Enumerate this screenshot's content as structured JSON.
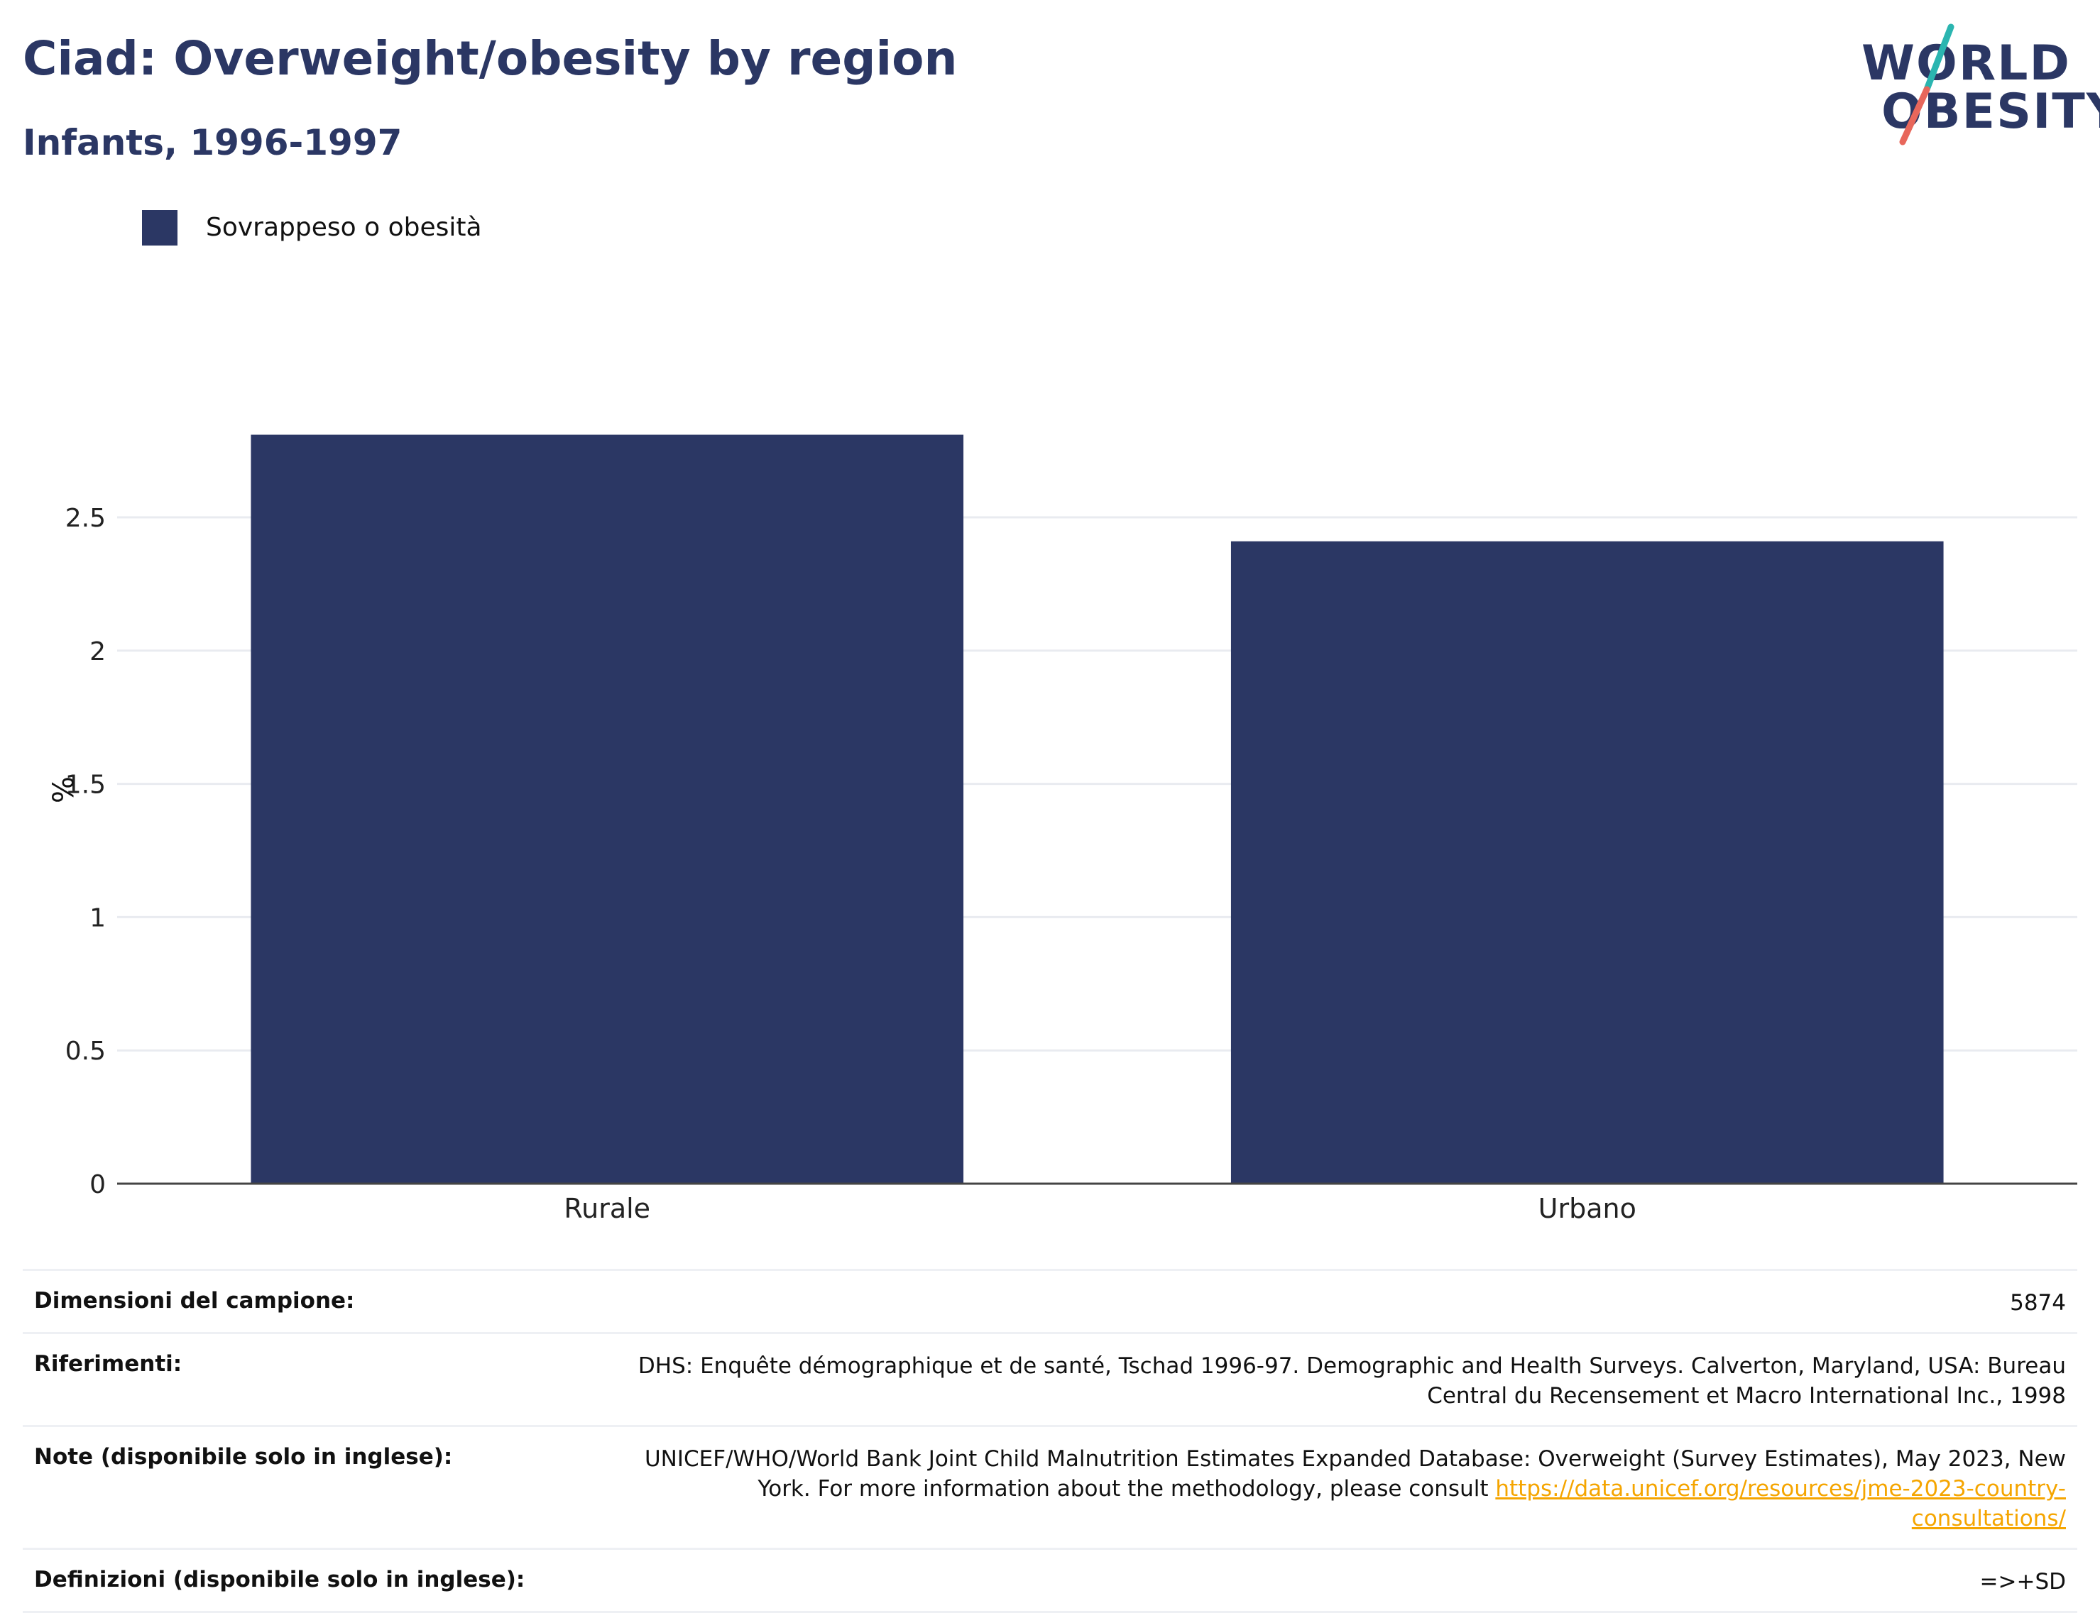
{
  "header": {
    "title": "Ciad: Overweight/obesity by region",
    "subtitle": "Infants, 1996-1997"
  },
  "logo": {
    "line1": "WORLD",
    "line2": "OBESITY",
    "colors": {
      "text": "#2b3764",
      "slash_top": "#2bb5b0",
      "slash_bottom": "#e8675b"
    }
  },
  "legend": {
    "items": [
      {
        "label": "Sovrappeso o obesità",
        "color": "#2b3764"
      }
    ]
  },
  "chart_data": {
    "type": "bar",
    "categories": [
      "Rurale",
      "Urbano"
    ],
    "series": [
      {
        "name": "Sovrappeso o obesità",
        "values": [
          2.81,
          2.41
        ],
        "color": "#2b3764"
      }
    ],
    "xlabel": "",
    "ylabel": "%",
    "ylim": [
      0,
      2.95
    ],
    "yticks": [
      0,
      0.5,
      1,
      1.5,
      2,
      2.5
    ],
    "ytick_labels": [
      "0",
      "0.5",
      "1",
      "1.5",
      "2",
      "2.5"
    ],
    "grid": true,
    "legend_position": "top-left"
  },
  "info": {
    "rows": [
      {
        "label": "Dimensioni del campione:",
        "value": "5874"
      },
      {
        "label": "Riferimenti:",
        "value": "DHS: Enquête démographique et de santé, Tschad 1996-97. Demographic and Health Surveys. Calverton, Maryland, USA: Bureau Central du Recensement et Macro International Inc., 1998"
      },
      {
        "label": "Note (disponibile solo in inglese):",
        "value": "UNICEF/WHO/World Bank Joint Child Malnutrition Estimates Expanded Database: Overweight (Survey Estimates), May 2023, New York. For more information about the methodology, please consult",
        "link": "https://data.unicef.org/resources/jme-2023-country-consultations/"
      },
      {
        "label": "Definizioni (disponibile solo in inglese):",
        "value": "=>+SD"
      }
    ]
  }
}
